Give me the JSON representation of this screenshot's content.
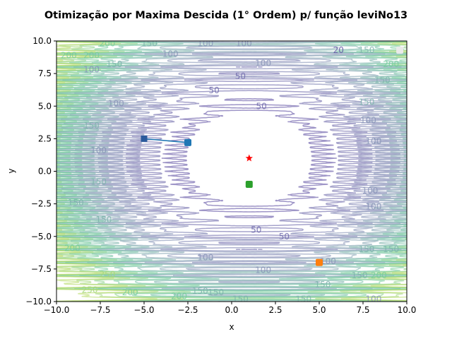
{
  "chart_data": {
    "type": "contour",
    "title": "Otimização por Maxima Descida (1° Ordem) p/ função leviNo13",
    "xlabel": "x",
    "ylabel": "y",
    "xlim": [
      -10,
      10
    ],
    "ylim": [
      -10,
      10
    ],
    "x_ticks": [
      "−10.0",
      "−7.5",
      "−5.0",
      "−2.5",
      "0.0",
      "2.5",
      "5.0",
      "7.5",
      "10.0"
    ],
    "y_ticks": [
      "−10.0",
      "−7.5",
      "−5.0",
      "−2.5",
      "0.0",
      "2.5",
      "5.0",
      "7.5",
      "10.0"
    ],
    "x_tick_values": [
      -10,
      -7.5,
      -5,
      -2.5,
      0,
      2.5,
      5,
      7.5,
      10
    ],
    "y_tick_values": [
      -10,
      -7.5,
      -5,
      -2.5,
      0,
      2.5,
      5,
      7.5,
      10
    ],
    "contour_levels": [
      50,
      100,
      150,
      200,
      250
    ],
    "contour_labels": [
      {
        "text": "50",
        "x": -1.0,
        "y": 6.2
      },
      {
        "text": "50",
        "x": 1.7,
        "y": 5.0
      },
      {
        "text": "50",
        "x": 0.5,
        "y": 7.3
      },
      {
        "text": "100",
        "x": 1.8,
        "y": 8.3
      },
      {
        "text": "100",
        "x": -3.5,
        "y": 9.0
      },
      {
        "text": "100",
        "x": -1.5,
        "y": 9.8
      },
      {
        "text": "100",
        "x": 0.7,
        "y": 9.8
      },
      {
        "text": "150",
        "x": -4.7,
        "y": 9.8
      },
      {
        "text": "200",
        "x": -7.1,
        "y": 9.8
      },
      {
        "text": "200",
        "x": -8.0,
        "y": 8.9
      },
      {
        "text": "150",
        "x": -6.7,
        "y": 8.2
      },
      {
        "text": "100",
        "x": -8.0,
        "y": 7.8
      },
      {
        "text": "200",
        "x": -9.3,
        "y": 8.9
      },
      {
        "text": "100",
        "x": -6.6,
        "y": 5.2
      },
      {
        "text": "150",
        "x": -8.0,
        "y": 3.5
      },
      {
        "text": "100",
        "x": -7.6,
        "y": 1.6
      },
      {
        "text": "150",
        "x": -7.6,
        "y": -0.8
      },
      {
        "text": "150",
        "x": -8.9,
        "y": -2.4
      },
      {
        "text": "150",
        "x": -7.3,
        "y": -3.7
      },
      {
        "text": "200",
        "x": -9.1,
        "y": -5.9
      },
      {
        "text": "250",
        "x": -7.1,
        "y": -7.9
      },
      {
        "text": "200",
        "x": -5.8,
        "y": -9.3
      },
      {
        "text": "150",
        "x": -1.8,
        "y": -9.2
      },
      {
        "text": "250",
        "x": -8.1,
        "y": -9.1
      },
      {
        "text": "200",
        "x": -3.0,
        "y": -9.6
      },
      {
        "text": "150",
        "x": 0.5,
        "y": -9.8
      },
      {
        "text": "100",
        "x": -1.5,
        "y": -6.6
      },
      {
        "text": "100",
        "x": 1.8,
        "y": -7.6
      },
      {
        "text": "50",
        "x": 1.4,
        "y": -4.5
      },
      {
        "text": "50",
        "x": 3.0,
        "y": -5.0
      },
      {
        "text": "100",
        "x": 5.5,
        "y": -6.9
      },
      {
        "text": "150",
        "x": 5.2,
        "y": -8.7
      },
      {
        "text": "150",
        "x": 4.1,
        "y": -9.8
      },
      {
        "text": "150",
        "x": 7.3,
        "y": -8.0
      },
      {
        "text": "150",
        "x": 7.7,
        "y": -6.0
      },
      {
        "text": "150",
        "x": 9.1,
        "y": -6.0
      },
      {
        "text": "200",
        "x": 8.4,
        "y": -8.0
      },
      {
        "text": "100",
        "x": 8.1,
        "y": -9.8
      },
      {
        "text": "100",
        "x": 8.1,
        "y": -2.7
      },
      {
        "text": "100",
        "x": 7.9,
        "y": -1.5
      },
      {
        "text": "100",
        "x": 8.1,
        "y": 2.3
      },
      {
        "text": "100",
        "x": 7.8,
        "y": 3.9
      },
      {
        "text": "150",
        "x": 8.6,
        "y": 7.0
      },
      {
        "text": "150",
        "x": 7.7,
        "y": 5.3
      },
      {
        "text": "150",
        "x": 7.7,
        "y": 9.3
      },
      {
        "text": "200",
        "x": 9.1,
        "y": 8.2
      },
      {
        "text": "20",
        "x": 6.1,
        "y": 9.3
      },
      {
        "text": "150",
        "x": -0.9,
        "y": -9.3
      }
    ],
    "series": [
      {
        "type": "line",
        "x": [
          -5.0,
          -2.5
        ],
        "y": [
          2.5,
          2.2
        ],
        "color": "#1f77b4"
      },
      {
        "type": "scatter",
        "x": [
          -5.0
        ],
        "y": [
          2.5
        ],
        "color": "#2a5a9c",
        "marker": "square"
      },
      {
        "type": "scatter",
        "x": [
          -2.5
        ],
        "y": [
          2.2
        ],
        "color": "#1f77b4",
        "marker": "rounded-square"
      },
      {
        "type": "scatter",
        "x": [
          5.0
        ],
        "y": [
          -7.0
        ],
        "color": "#ff7f0e",
        "marker": "rounded-square"
      },
      {
        "type": "scatter",
        "x": [
          1.0
        ],
        "y": [
          -1.0
        ],
        "color": "#2ca02c",
        "marker": "rounded-square"
      },
      {
        "type": "scatter",
        "x": [
          9.6
        ],
        "y": [
          9.3
        ],
        "color": "#eaeaea",
        "marker": "rounded-square"
      },
      {
        "type": "scatter",
        "x": [
          1.0
        ],
        "y": [
          1.0
        ],
        "color": "#ff0000",
        "marker": "star"
      }
    ],
    "colors": {
      "low": "#5e4fa2",
      "mid": "#8a9bb8",
      "high": "#6ec9a0",
      "edge": "#b9dc6a"
    }
  }
}
